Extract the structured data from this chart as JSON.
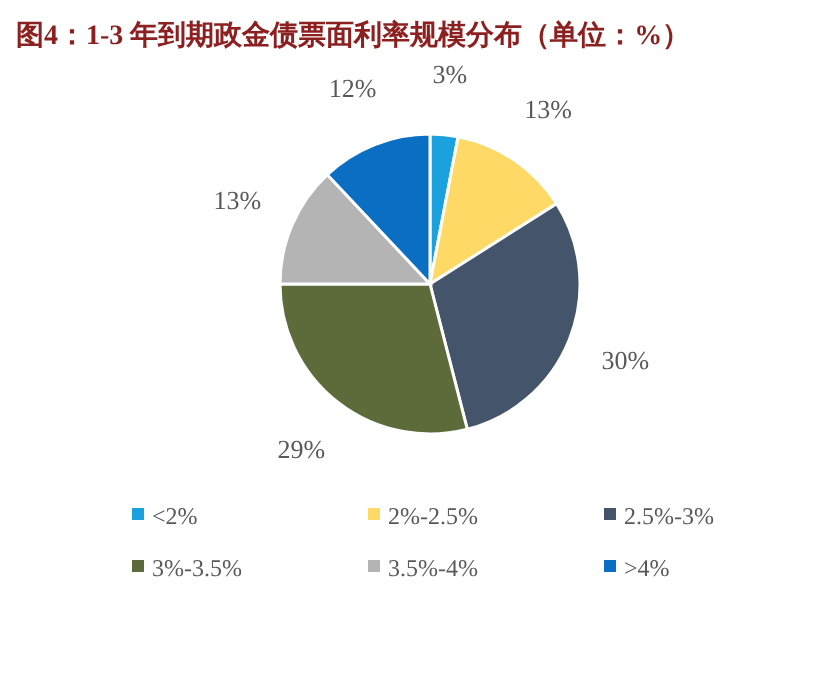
{
  "chart_data": {
    "type": "pie",
    "title": "图4：1-3 年到期政金债票面利率规模分布（单位：%）",
    "categories": [
      "<2%",
      "2%-2.5%",
      "2.5%-3%",
      "3%-3.5%",
      "3.5%-4%",
      ">4%"
    ],
    "values": [
      3,
      13,
      30,
      29,
      13,
      12
    ],
    "value_labels": [
      "3%",
      "13%",
      "30%",
      "29%",
      "13%",
      "12%"
    ],
    "colors": [
      "#1aa1de",
      "#ffd966",
      "#44546a",
      "#5d6b3a",
      "#b4b4b4",
      "#0a6fc2"
    ],
    "legend": "bottom"
  }
}
